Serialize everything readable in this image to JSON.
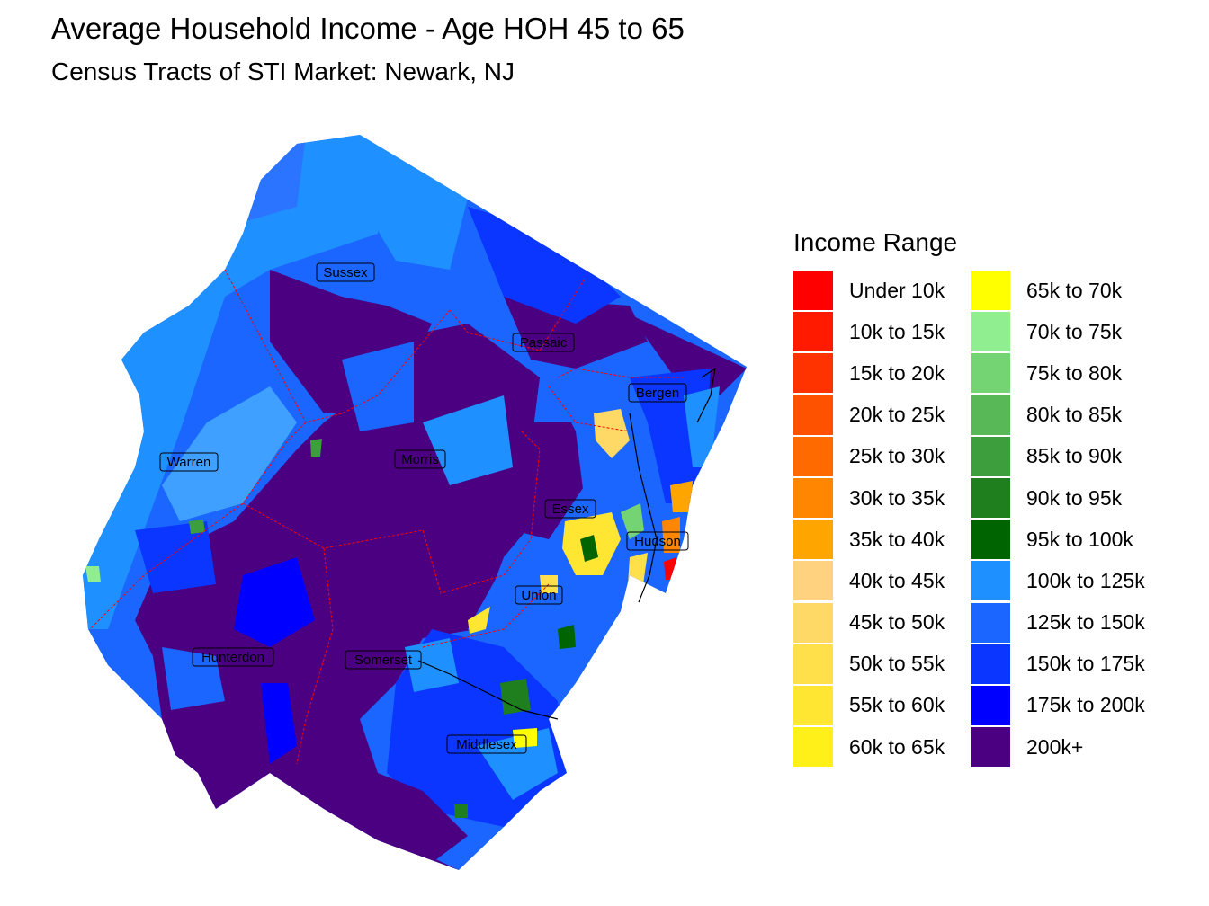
{
  "title": "Average Household Income - Age HOH 45 to 65",
  "subtitle": "Census Tracts of STI Market: Newark, NJ",
  "legend": {
    "title": "Income Range",
    "items": [
      {
        "label": "Under 10k",
        "color": "#FF0000"
      },
      {
        "label": "10k to 15k",
        "color": "#FF1A00"
      },
      {
        "label": "15k to 20k",
        "color": "#FF3300"
      },
      {
        "label": "20k to 25k",
        "color": "#FF5200"
      },
      {
        "label": "25k to 30k",
        "color": "#FF6A00"
      },
      {
        "label": "30k to 35k",
        "color": "#FF8600"
      },
      {
        "label": "35k to 40k",
        "color": "#FFA500"
      },
      {
        "label": "40k to 45k",
        "color": "#FFD27F"
      },
      {
        "label": "45k to 50k",
        "color": "#FFD966"
      },
      {
        "label": "50k to 55k",
        "color": "#FFE04A"
      },
      {
        "label": "55k to 60k",
        "color": "#FFE633"
      },
      {
        "label": "60k to 65k",
        "color": "#FFF01A"
      },
      {
        "label": "65k to 70k",
        "color": "#FFFF00"
      },
      {
        "label": "70k to 75k",
        "color": "#90EE90"
      },
      {
        "label": "75k to 80k",
        "color": "#74D474"
      },
      {
        "label": "80k to 85k",
        "color": "#58B858"
      },
      {
        "label": "85k to 90k",
        "color": "#3C9E3C"
      },
      {
        "label": "90k to 95k",
        "color": "#1F7F1F"
      },
      {
        "label": "95k to 100k",
        "color": "#006400"
      },
      {
        "label": "100k to 125k",
        "color": "#1E90FF"
      },
      {
        "label": "125k to 150k",
        "color": "#1A66FF"
      },
      {
        "label": "150k to 175k",
        "color": "#0A36FF"
      },
      {
        "label": "175k to 200k",
        "color": "#0000FF"
      },
      {
        "label": "200k+",
        "color": "#4B0082"
      }
    ]
  },
  "counties": {
    "sussex": "Sussex",
    "passaic": "Passaic",
    "bergen": "Bergen",
    "warren": "Warren",
    "morris": "Morris",
    "essex": "Essex",
    "hudson": "Hudson",
    "union": "Union",
    "hunterdon": "Hunterdon",
    "somerset": "Somerset",
    "middlesex": "Middlesex"
  }
}
